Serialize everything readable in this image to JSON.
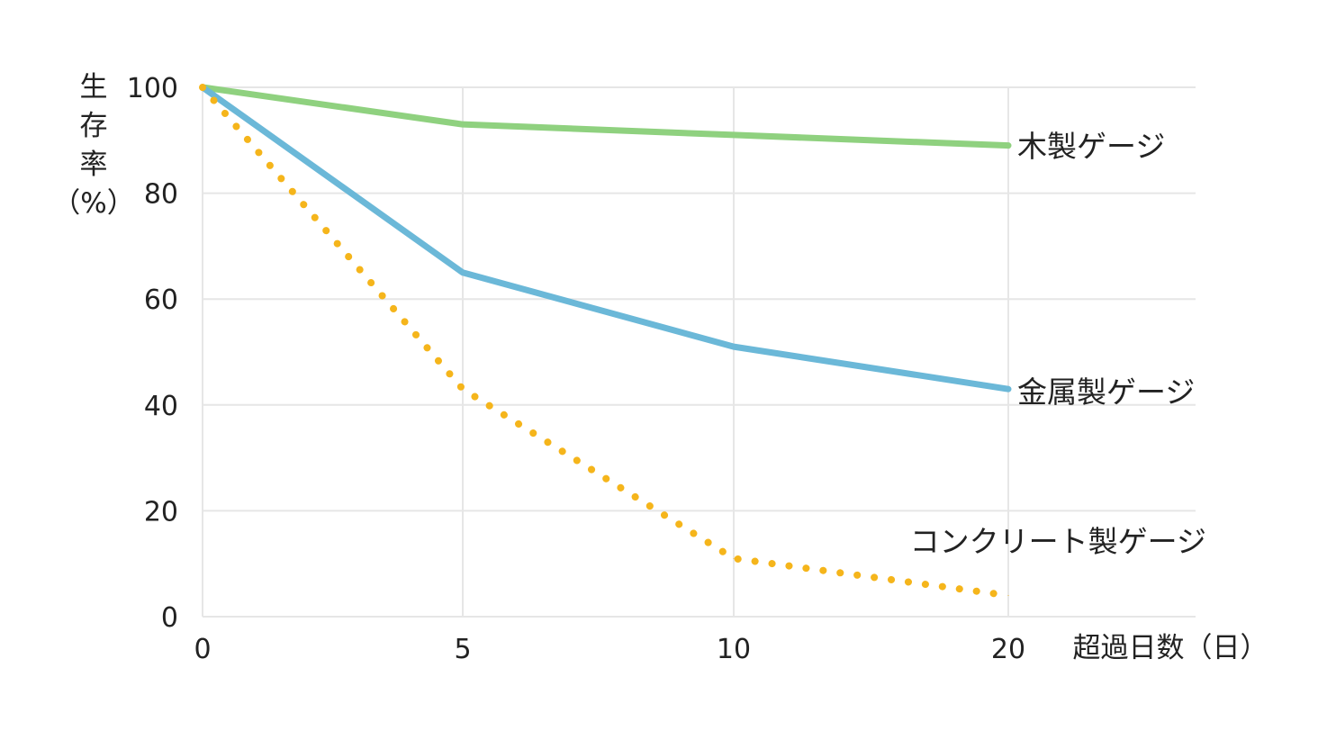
{
  "chart_data": {
    "type": "line",
    "ylabel": "生存率（%）",
    "xlabel": "超過日数（日）",
    "x": [
      0,
      5,
      10,
      20
    ],
    "x_ticks": [
      "0",
      "5",
      "10",
      "20"
    ],
    "y_ticks": [
      "0",
      "20",
      "40",
      "60",
      "80",
      "100"
    ],
    "ylim": [
      0,
      100
    ],
    "grid": true,
    "series": [
      {
        "name": "木製ゲージ",
        "values": [
          100,
          93,
          91,
          89
        ],
        "color": "#8fd17f",
        "style": "solid"
      },
      {
        "name": "金属製ゲージ",
        "values": [
          100,
          65,
          51,
          43
        ],
        "color": "#6bb8d8",
        "style": "solid"
      },
      {
        "name": "コンクリート製ゲージ",
        "values": [
          100,
          43,
          11,
          4
        ],
        "color": "#f5b51b",
        "style": "dotted"
      }
    ]
  }
}
